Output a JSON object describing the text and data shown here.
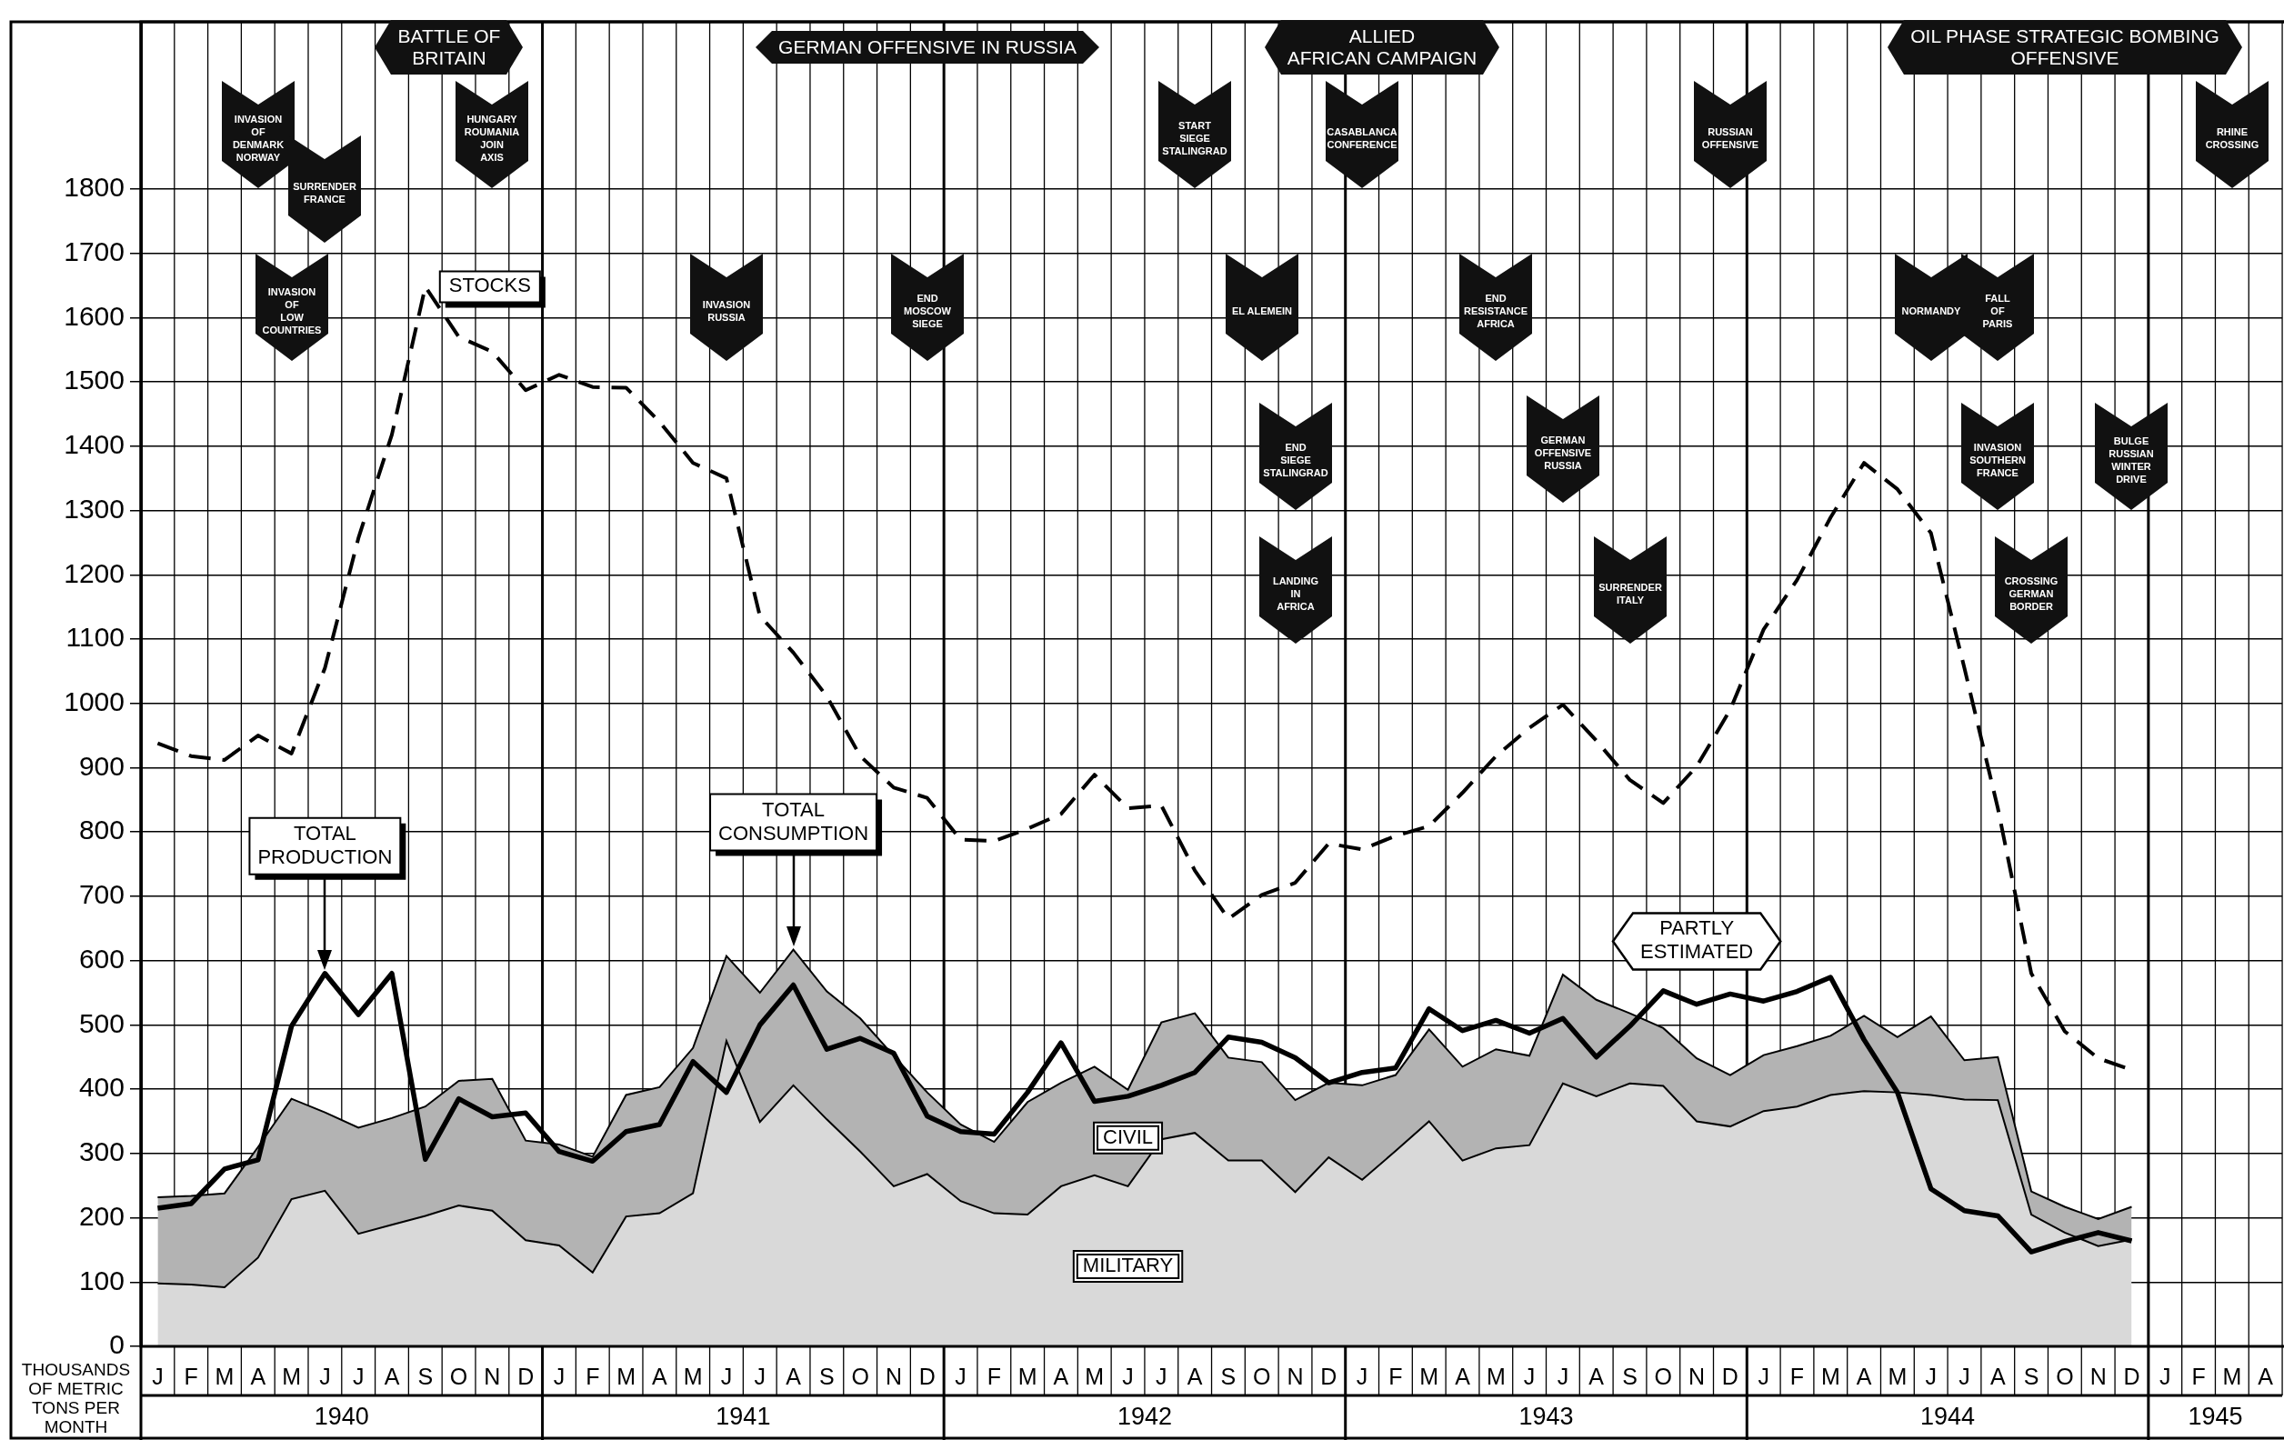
{
  "chart_data": {
    "type": "line",
    "ylabel": "THOUSANDS\nOF METRIC\nTONS PER\nMONTH",
    "categories": [
      "J",
      "F",
      "M",
      "A",
      "M",
      "J",
      "J",
      "A",
      "S",
      "O",
      "N",
      "D",
      "J",
      "F",
      "M",
      "A",
      "M",
      "J",
      "J",
      "A",
      "S",
      "O",
      "N",
      "D",
      "J",
      "F",
      "M",
      "A",
      "M",
      "J",
      "J",
      "A",
      "S",
      "O",
      "N",
      "D",
      "J",
      "F",
      "M",
      "A",
      "M",
      "J",
      "J",
      "A",
      "S",
      "O",
      "N",
      "D",
      "J",
      "F",
      "M",
      "A",
      "M",
      "J",
      "J",
      "A",
      "S",
      "O",
      "N",
      "D",
      "J",
      "F",
      "M",
      "A"
    ],
    "stacked": true,
    "series": [
      {
        "name": "MILITARY",
        "type": "area",
        "color": "#d9d9d9",
        "values": [
          98,
          96,
          92,
          138,
          229,
          242,
          175,
          189,
          203,
          219,
          211,
          165,
          157,
          115,
          202,
          207,
          238,
          475,
          349,
          406,
          353,
          303,
          249,
          268,
          226,
          207,
          205,
          249,
          266,
          249,
          322,
          332,
          289,
          289,
          240,
          294,
          259,
          304,
          350,
          289,
          308,
          313,
          409,
          389,
          409,
          405,
          350,
          342,
          366,
          373,
          391,
          397,
          395,
          391,
          384,
          383,
          205,
          177,
          156,
          166,
          null,
          null,
          null,
          null
        ]
      },
      {
        "name": "CIVIL",
        "type": "area",
        "color": "#b3b3b3",
        "values": [
          134,
          138,
          146,
          172,
          156,
          122,
          165,
          166,
          170,
          194,
          205,
          155,
          157,
          180,
          189,
          196,
          226,
          132,
          201,
          211,
          199,
          207,
          203,
          127,
          119,
          111,
          175,
          161,
          169,
          150,
          182,
          186,
          160,
          153,
          143,
          116,
          147,
          118,
          143,
          146,
          154,
          139,
          169,
          150,
          109,
          90,
          98,
          80,
          87,
          94,
          92,
          117,
          86,
          122,
          61,
          67,
          36,
          40,
          42,
          51,
          null,
          null,
          null,
          null
        ]
      },
      {
        "name": "TOTAL\nPRODUCTION",
        "color": "#000000",
        "line_style": "solid",
        "values": [
          215,
          222,
          276,
          290,
          498,
          580,
          516,
          580,
          291,
          385,
          357,
          363,
          303,
          288,
          334,
          345,
          443,
          395,
          500,
          562,
          462,
          479,
          456,
          358,
          334,
          330,
          395,
          472,
          381,
          389,
          406,
          426,
          481,
          473,
          449,
          410,
          426,
          433,
          525,
          491,
          507,
          487,
          510,
          450,
          498,
          553,
          532,
          548,
          537,
          552,
          574,
          477,
          395,
          245,
          211,
          203,
          147,
          163,
          177,
          164,
          null,
          null,
          null,
          null
        ]
      },
      {
        "name": "STOCKS",
        "color": "#000000",
        "line_style": "dashed",
        "values": [
          938,
          918,
          912,
          950,
          922,
          1055,
          1257,
          1418,
          1648,
          1570,
          1547,
          1487,
          1511,
          1492,
          1491,
          1438,
          1374,
          1350,
          1136,
          1079,
          1011,
          918,
          869,
          853,
          788,
          786,
          805,
          828,
          889,
          837,
          841,
          740,
          665,
          702,
          721,
          782,
          773,
          794,
          809,
          861,
          918,
          962,
          998,
          942,
          881,
          845,
          902,
          990,
          1115,
          1192,
          1289,
          1374,
          1333,
          1265,
          1055,
          837,
          580,
          490,
          448,
          430,
          null,
          null,
          null,
          null
        ]
      }
    ],
    "ylim": [
      0,
      2060
    ],
    "yticks": [
      0,
      100,
      200,
      300,
      400,
      500,
      600,
      700,
      800,
      900,
      1000,
      1100,
      1200,
      1300,
      1400,
      1500,
      1600,
      1700,
      1800
    ],
    "grid": true,
    "legend": false,
    "annotations": [
      "BATTLE OF\nBRITAIN",
      "GERMAN OFFENSIVE IN RUSSIA",
      "ALLIED\nAFRICAN CAMPAIGN",
      "OIL PHASE STRATEGIC BOMBING\nOFFENSIVE",
      "INVASION\nOF\nDENMARK\nNORWAY",
      "SURRENDER\nFRANCE",
      "INVASION\nOF\nLOW\nCOUNTRIES",
      "HUNGARY\nROUMANIA\nJOIN\nAXIS",
      "INVASION\nRUSSIA",
      "END\nMOSCOW\nSIEGE",
      "START\nSIEGE\nSTALINGRAD",
      "EL ALEMEIN",
      "END\nSIEGE\nSTALINGRAD",
      "LANDING\nIN\nAFRICA",
      "CASABLANCA\nCONFERENCE",
      "END\nRESISTANCE\nAFRICA",
      "GERMAN\nOFFENSIVE\nRUSSIA",
      "SURRENDER\nITALY",
      "RUSSIAN\nOFFENSIVE",
      "NORMANDY",
      "FALL\nOF\nPARIS",
      "INVASION\nSOUTHERN\nFRANCE",
      "CROSSING\nGERMAN\nBORDER",
      "BULGE\nRUSSIAN\nWINTER\nDRIVE",
      "RHINE\nCROSSING",
      "TOTAL\nCONSUMPTION",
      "PARTLY\nESTIMATED",
      "1940",
      "1941",
      "1942",
      "1943",
      "1944",
      "1945"
    ]
  }
}
